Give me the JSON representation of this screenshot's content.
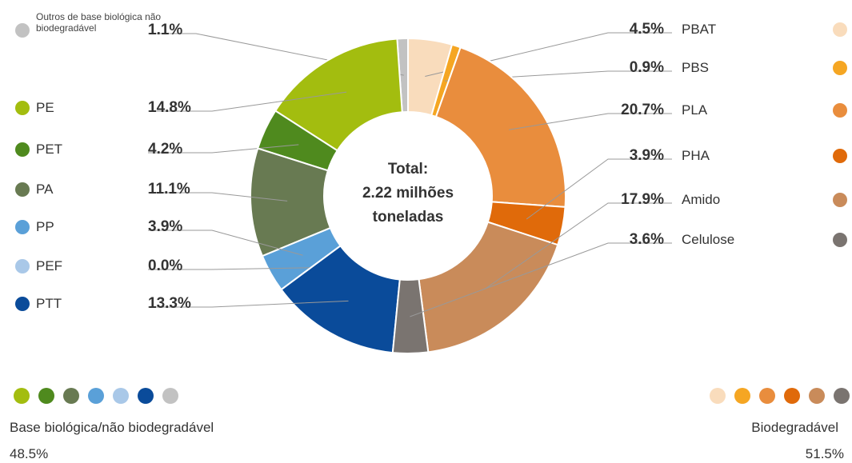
{
  "chart_data": {
    "type": "pie",
    "center_label": [
      "Total:",
      "2.22 milhões",
      "toneladas"
    ],
    "groups": [
      {
        "name": "Base biológica/não biodegradável",
        "share": 48.5,
        "share_label": "48.5%",
        "series": [
          {
            "name": "Outros de base biológica não biodegradável",
            "color": "#c2c2c2",
            "value": 1.1,
            "value_label": "1.1%"
          },
          {
            "name": "PE",
            "color": "#a3bd0f",
            "value": 14.8,
            "value_label": "14.8%"
          },
          {
            "name": "PET",
            "color": "#4f8a1e",
            "value": 4.2,
            "value_label": "4.2%"
          },
          {
            "name": "PA",
            "color": "#687a52",
            "value": 11.1,
            "value_label": "11.1%"
          },
          {
            "name": "PP",
            "color": "#5aa0d8",
            "value": 3.9,
            "value_label": "3.9%"
          },
          {
            "name": "PEF",
            "color": "#a9c8e8",
            "value": 0.0,
            "value_label": "0.0%"
          },
          {
            "name": "PTT",
            "color": "#0a4b9a",
            "value": 13.3,
            "value_label": "13.3%"
          }
        ]
      },
      {
        "name": "Biodegradável",
        "share": 51.5,
        "share_label": "51.5%",
        "series": [
          {
            "name": "PBAT",
            "color": "#f9dcbc",
            "value": 4.5,
            "value_label": "4.5%"
          },
          {
            "name": "PBS",
            "color": "#f5a623",
            "value": 0.9,
            "value_label": "0.9%"
          },
          {
            "name": "PLA",
            "color": "#e98d3d",
            "value": 20.7,
            "value_label": "20.7%"
          },
          {
            "name": "PHA",
            "color": "#e06a0a",
            "value": 3.9,
            "value_label": "3.9%"
          },
          {
            "name": "Amido",
            "color": "#c98b5a",
            "value": 17.9,
            "value_label": "17.9%"
          },
          {
            "name": "Celulose",
            "color": "#7a7470",
            "value": 3.6,
            "value_label": "3.6%"
          }
        ]
      }
    ]
  }
}
